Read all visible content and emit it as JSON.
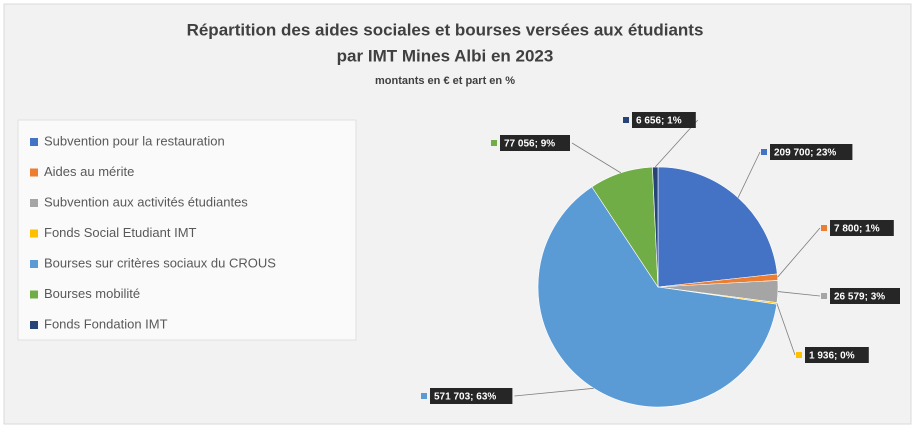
{
  "chart_data": {
    "type": "pie",
    "title": "Répartition des aides sociales et bourses versées aux étudiants",
    "title_line2": "par IMT Mines Albi en 2023",
    "subtitle": "montants en € et part en %",
    "categories": [
      "Subvention pour la restauration",
      "Aides au mérite",
      "Subvention aux activités étudiantes",
      "Fonds Social Etudiant IMT",
      "Bourses sur critères sociaux du CROUS",
      "Bourses mobilité",
      "Fonds Fondation IMT"
    ],
    "values": [
      209700,
      7800,
      26579,
      1936,
      571703,
      77056,
      6656
    ],
    "value_labels": [
      "209 700; 23%",
      "7 800; 1%",
      "26 579; 3%",
      "1 936; 0%",
      "571 703; 63%",
      "77 056; 9%",
      "6 656; 1%"
    ],
    "colors": [
      "#4472c4",
      "#ed7d31",
      "#a5a5a5",
      "#ffc000",
      "#5b9bd5",
      "#70ad47",
      "#264478"
    ],
    "legend": "left"
  }
}
